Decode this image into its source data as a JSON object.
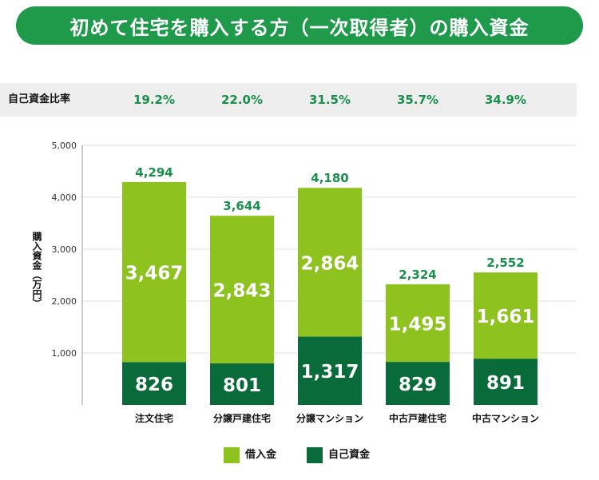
{
  "title": "初めて住宅を購入する方（一次取得者）の購入資金",
  "self_fund_ratio": {
    "label": "自己資金比率",
    "values": [
      "19.2%",
      "22.0%",
      "31.5%",
      "35.7%",
      "34.9%"
    ]
  },
  "colors": {
    "loan": "#8dc21f",
    "self": "#0a6b3a",
    "total_label": "#1a8f4c",
    "title_bg": "#1f9a4b"
  },
  "chart_data": {
    "type": "bar",
    "stacked": true,
    "title": "",
    "ylabel": "購入資金（万円）",
    "xlabel": "",
    "ylim": [
      0,
      5000
    ],
    "yticks": [
      1000,
      2000,
      3000,
      4000,
      5000
    ],
    "ytick_labels": [
      "1,000",
      "2,000",
      "3,000",
      "4,000",
      "5,000"
    ],
    "categories": [
      "注文住宅",
      "分譲戸建住宅",
      "分譲マンション",
      "中古戸建住宅",
      "中古マンション"
    ],
    "series": [
      {
        "name": "自己資金",
        "values": [
          826,
          801,
          1317,
          829,
          891
        ],
        "labels": [
          "826",
          "801",
          "1,317",
          "829",
          "891"
        ]
      },
      {
        "name": "借入金",
        "values": [
          3467,
          2843,
          2864,
          1495,
          1661
        ],
        "labels": [
          "3,467",
          "2,843",
          "2,864",
          "1,495",
          "1,661"
        ]
      }
    ],
    "totals": [
      4294,
      3644,
      4180,
      2324,
      2552
    ],
    "total_labels": [
      "4,294",
      "3,644",
      "4,180",
      "2,324",
      "2,552"
    ],
    "legend": [
      "借入金",
      "自己資金"
    ]
  }
}
